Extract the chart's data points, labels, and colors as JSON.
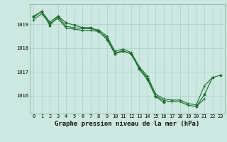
{
  "xlabel": "Graphe pression niveau de la mer (hPa)",
  "hours": [
    0,
    1,
    2,
    3,
    4,
    5,
    6,
    7,
    8,
    9,
    10,
    11,
    12,
    13,
    14,
    15,
    16,
    17,
    18,
    19,
    20,
    21,
    22,
    23
  ],
  "line1": [
    1019.3,
    1019.55,
    1019.1,
    1019.35,
    1018.92,
    1018.87,
    1018.82,
    1018.82,
    1018.77,
    1018.52,
    1017.87,
    1017.97,
    1017.82,
    1017.22,
    1016.82,
    1016.07,
    1015.87,
    1015.82,
    1015.82,
    1015.67,
    1015.62,
    1016.42,
    1016.77,
    null
  ],
  "line2": [
    1019.2,
    1019.45,
    1019.05,
    1019.25,
    1018.85,
    1018.8,
    1018.75,
    1018.75,
    1018.7,
    1018.45,
    1017.8,
    1017.9,
    1017.75,
    1017.15,
    1016.75,
    1016.0,
    1015.8,
    1015.75,
    1015.75,
    1015.6,
    1015.55,
    1015.87,
    null,
    null
  ],
  "line3": [
    1019.35,
    1019.55,
    1018.95,
    1019.35,
    1019.07,
    1018.97,
    1018.87,
    1018.87,
    1018.72,
    1018.37,
    1017.77,
    1017.87,
    1017.77,
    1017.12,
    1016.67,
    1015.97,
    1015.72,
    null,
    null,
    null,
    null,
    null,
    null,
    null
  ],
  "line4": [
    null,
    null,
    null,
    null,
    null,
    null,
    null,
    null,
    null,
    null,
    null,
    null,
    null,
    null,
    null,
    null,
    null,
    null,
    null,
    null,
    1015.55,
    1016.05,
    1016.77,
    1016.87
  ],
  "bg_color": "#cce8e0",
  "grid_color": "#aacfc8",
  "line_color": "#1a6b2a",
  "ylim_min": 1015.25,
  "ylim_max": 1019.85,
  "yticks": [
    1016,
    1017,
    1018,
    1019
  ],
  "xticks": [
    0,
    1,
    2,
    3,
    4,
    5,
    6,
    7,
    8,
    9,
    10,
    11,
    12,
    13,
    14,
    15,
    16,
    17,
    18,
    19,
    20,
    21,
    22,
    23
  ],
  "tick_fontsize": 5.0,
  "xlabel_fontsize": 6.5
}
